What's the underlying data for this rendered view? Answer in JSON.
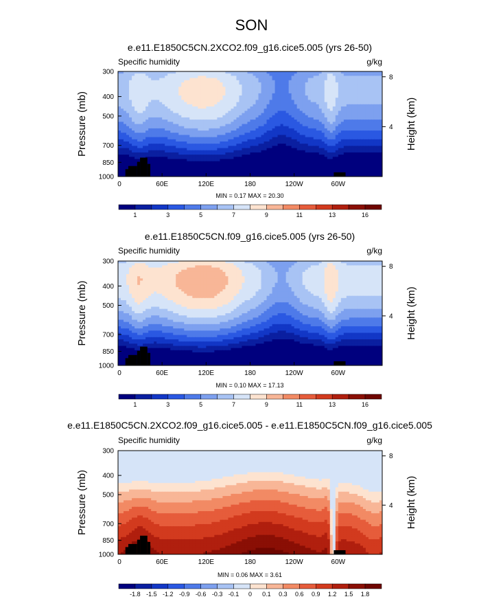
{
  "figure_title": "SON",
  "chart_data": [
    {
      "type": "heatmap",
      "title": "e.e11.E1850C5CN.2XCO2.f09_g16.cice5.005 (yrs 26-50)",
      "left_label": "Specific humidity",
      "right_label": "g/kg",
      "ylabel": "Pressure (mb)",
      "ylabel_right": "Height (km)",
      "xticks": [
        "0",
        "60E",
        "120E",
        "180",
        "120W",
        "60W"
      ],
      "xtick_values": [
        0,
        60,
        120,
        180,
        240,
        300
      ],
      "xlim": [
        0,
        360
      ],
      "yticks": [
        "300",
        "400",
        "500",
        "700",
        "850",
        "1000"
      ],
      "ytick_values": [
        300,
        400,
        500,
        700,
        850,
        1000
      ],
      "ylim": [
        1000,
        300
      ],
      "yticks_right": [
        "8",
        "4"
      ],
      "ytick_right_values": [
        8,
        4
      ],
      "stats": "MIN =  0.17  MAX =  20.30",
      "min": 0.17,
      "max": 20.3,
      "colorbar_labels": [
        "1",
        "3",
        "5",
        "7",
        "9",
        "11",
        "13",
        "16"
      ],
      "palette": [
        "#00007e",
        "#0a1fa0",
        "#1237c6",
        "#2a58e2",
        "#4e7ae9",
        "#7da0ef",
        "#a8c3f4",
        "#d6e4f8",
        "#fde3d0",
        "#f8b697",
        "#f28a64",
        "#e65c3b",
        "#d23a1e",
        "#b01f0e",
        "#8a0f05",
        "#6f0600"
      ],
      "midpoint": 0.55
    },
    {
      "type": "heatmap",
      "title": "e.e11.E1850C5CN.f09_g16.cice5.005 (yrs 26-50)",
      "left_label": "Specific humidity",
      "right_label": "g/kg",
      "ylabel": "Pressure (mb)",
      "ylabel_right": "Height (km)",
      "xticks": [
        "0",
        "60E",
        "120E",
        "180",
        "120W",
        "60W"
      ],
      "xtick_values": [
        0,
        60,
        120,
        180,
        240,
        300
      ],
      "xlim": [
        0,
        360
      ],
      "yticks": [
        "300",
        "400",
        "500",
        "700",
        "850",
        "1000"
      ],
      "ytick_values": [
        300,
        400,
        500,
        700,
        850,
        1000
      ],
      "ylim": [
        1000,
        300
      ],
      "yticks_right": [
        "8",
        "4"
      ],
      "ytick_right_values": [
        8,
        4
      ],
      "stats": "MIN =  0.10  MAX =  17.13",
      "min": 0.1,
      "max": 17.13,
      "colorbar_labels": [
        "1",
        "3",
        "5",
        "7",
        "9",
        "11",
        "13",
        "16"
      ],
      "palette": [
        "#00007e",
        "#0a1fa0",
        "#1237c6",
        "#2a58e2",
        "#4e7ae9",
        "#7da0ef",
        "#a8c3f4",
        "#d6e4f8",
        "#fde3d0",
        "#f8b697",
        "#f28a64",
        "#e65c3b",
        "#d23a1e",
        "#b01f0e",
        "#8a0f05",
        "#6f0600"
      ],
      "midpoint": 0.62
    },
    {
      "type": "heatmap",
      "title": "e.e11.E1850C5CN.2XCO2.f09_g16.cice5.005 - e.e11.E1850C5CN.f09_g16.cice5.005",
      "left_label": "Specific humidity",
      "right_label": "g/kg",
      "ylabel": "Pressure (mb)",
      "ylabel_right": "Height (km)",
      "xticks": [
        "0",
        "60E",
        "120E",
        "180",
        "120W",
        "60W"
      ],
      "xtick_values": [
        0,
        60,
        120,
        180,
        240,
        300
      ],
      "xlim": [
        0,
        360
      ],
      "yticks": [
        "300",
        "400",
        "500",
        "700",
        "850",
        "1000"
      ],
      "ytick_values": [
        300,
        400,
        500,
        700,
        850,
        1000
      ],
      "ylim": [
        1000,
        300
      ],
      "yticks_right": [
        "8",
        "4"
      ],
      "ytick_right_values": [
        8,
        4
      ],
      "stats": "MIN =  0.06  MAX =  3.61",
      "min": 0.06,
      "max": 3.61,
      "colorbar_labels": [
        "-1.8",
        "-1.5",
        "-1.2",
        "-0.9",
        "-0.6",
        "-0.3",
        "-0.1",
        "0",
        "0.1",
        "0.3",
        "0.6",
        "0.9",
        "1.2",
        "1.5",
        "1.8"
      ],
      "palette": [
        "#00007e",
        "#0a1fa0",
        "#1237c6",
        "#2a58e2",
        "#4e7ae9",
        "#7da0ef",
        "#a8c3f4",
        "#d6e4f8",
        "#fde3d0",
        "#f8b697",
        "#f28a64",
        "#e65c3b",
        "#d23a1e",
        "#b01f0e",
        "#8a0f05",
        "#6f0600"
      ]
    }
  ]
}
